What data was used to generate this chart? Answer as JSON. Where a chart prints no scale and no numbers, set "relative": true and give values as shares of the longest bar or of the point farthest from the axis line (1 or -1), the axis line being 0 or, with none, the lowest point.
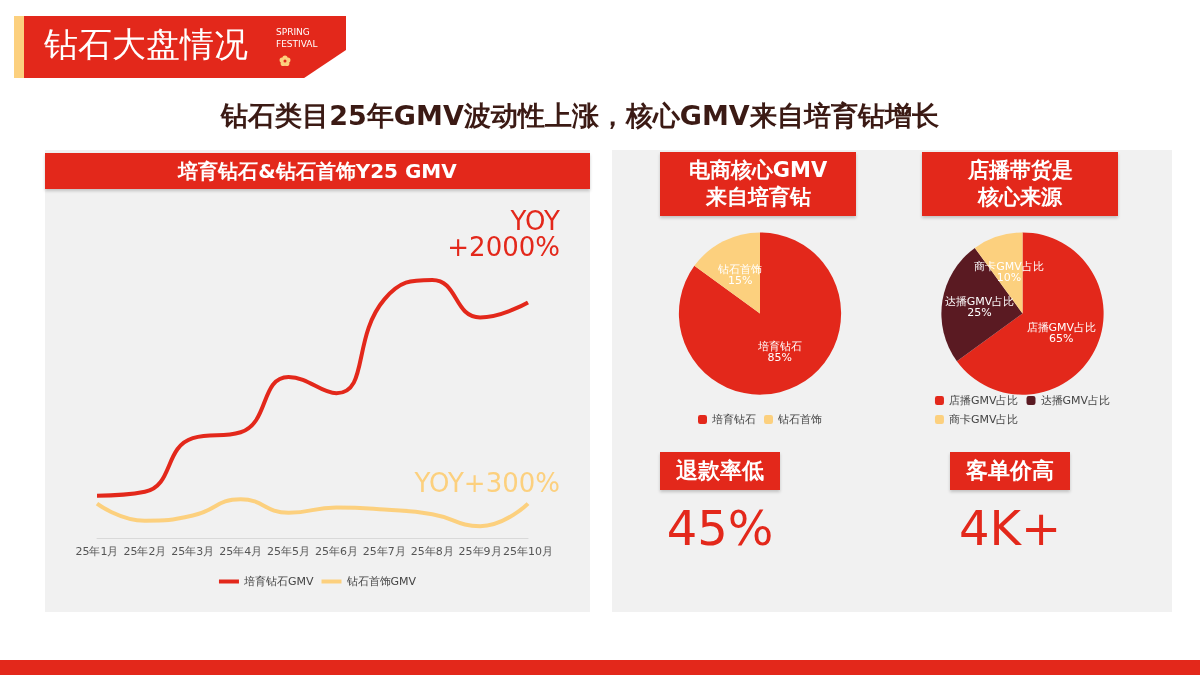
{
  "chart_data": [
    {
      "type": "line",
      "title": "培育钻石&钻石首饰Y25 GMV",
      "relative": true,
      "categories": [
        "25年1月",
        "25年2月",
        "25年3月",
        "25年4月",
        "25年5月",
        "25年6月",
        "25年7月",
        "25年8月",
        "25年9月",
        "25年10月"
      ],
      "series": [
        {
          "name": "培育钻石GMV",
          "color": "#e3281b",
          "values": [
            0.164,
            0.179,
            0.387,
            0.41,
            0.624,
            0.561,
            0.925,
            1,
            0.855,
            0.913
          ]
        },
        {
          "name": "钻石首饰GMV",
          "color": "#fcd07e",
          "values": [
            0.133,
            0.067,
            0.087,
            0.15,
            0.098,
            0.118,
            0.11,
            0.092,
            0.046,
            0.133
          ]
        }
      ],
      "annotations": [
        "YOY\n+2000%",
        "YOY+300%"
      ],
      "legend": "bottom",
      "grid": false,
      "marker": "none"
    },
    {
      "type": "pie",
      "title": "电商核心GMV来自培育钻",
      "categories": [
        "培育钻石",
        "钻石首饰"
      ],
      "values": [
        85,
        15
      ],
      "value_labels": [
        "85%",
        "15%"
      ],
      "colors": [
        "#e3281b",
        "#fcd07e"
      ],
      "legend": "bottom"
    },
    {
      "type": "pie",
      "title": "店播带货是核心来源",
      "categories": [
        "店播GMV占比",
        "达播GMV占比",
        "商卡GMV占比"
      ],
      "values": [
        65,
        25,
        10
      ],
      "value_labels": [
        "65%",
        "25%",
        "10%"
      ],
      "colors": [
        "#e3281b",
        "#5a1a22",
        "#fcd07e"
      ],
      "legend": "bottom"
    },
    {
      "type": "other",
      "annotations": [
        "退款率低",
        "45%",
        "客单价高",
        "4K+"
      ]
    },
    {
      "type": "other",
      "title": "钻石大盘情况",
      "subtitle": "钻石类目25年GMV波动性上涨，核心GMV来自培育钻增长",
      "annotations": [
        "SPRING\nFESTIVAL"
      ]
    }
  ]
}
